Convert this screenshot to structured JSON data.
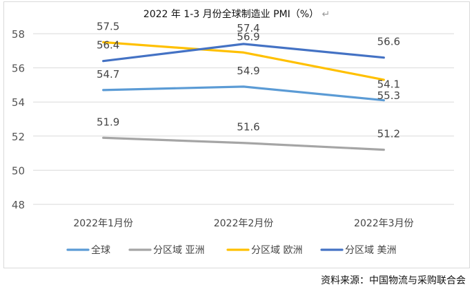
{
  "chart_data": {
    "type": "line",
    "title": "2022 年 1-3 月份全球制造业 PMI（%）",
    "title_mark": "↵",
    "categories": [
      "2022年1月份",
      "2022年2月份",
      "2022年3月份"
    ],
    "ylim": [
      48,
      58
    ],
    "yticks": [
      48,
      50,
      52,
      54,
      56,
      58
    ],
    "grid": true,
    "legend_position": "bottom",
    "series": [
      {
        "name": "全球",
        "color": "#5b9bd5",
        "values": [
          54.7,
          54.9,
          54.1
        ]
      },
      {
        "name": "分区域 亚洲",
        "color": "#a5a5a5",
        "values": [
          51.9,
          51.6,
          51.2
        ]
      },
      {
        "name": "分区域 欧洲",
        "color": "#ffc000",
        "values": [
          57.5,
          56.9,
          55.3
        ]
      },
      {
        "name": "分区域 美洲",
        "color": "#4472c4",
        "values": [
          56.4,
          57.4,
          56.6
        ]
      }
    ]
  },
  "source": "资料来源：中国物流与采购联合会"
}
